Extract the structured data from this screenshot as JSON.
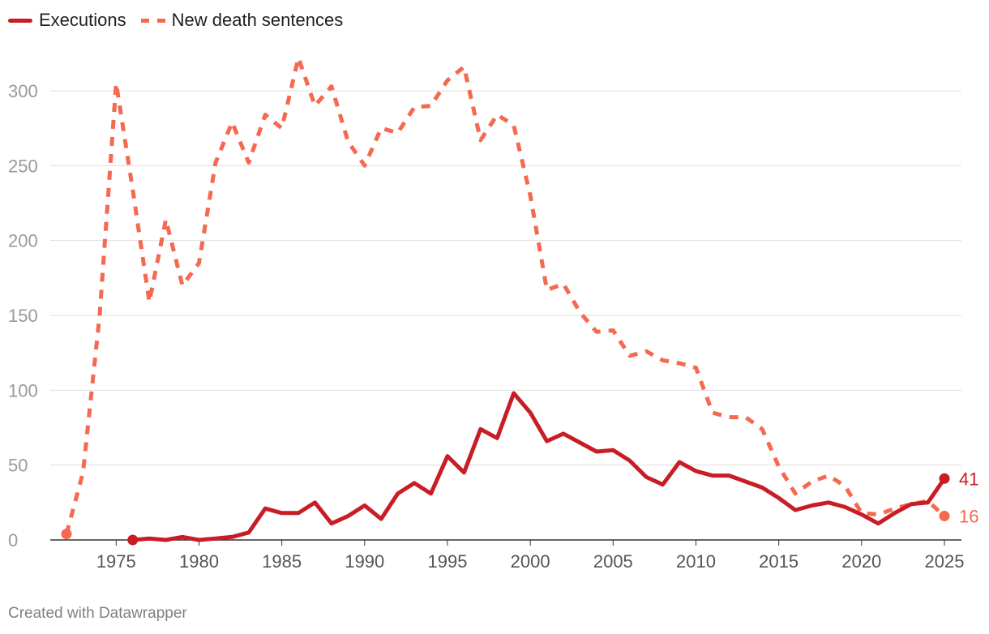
{
  "legend": {
    "executions_label": "Executions",
    "sentences_label": "New death sentences"
  },
  "credit": "Created with Datawrapper",
  "colors": {
    "executions": "#c81d25",
    "sentences": "#f4694f",
    "grid": "#e0e0e0",
    "axis": "#333333"
  },
  "chart_data": {
    "type": "line",
    "title": "",
    "xlabel": "",
    "ylabel": "",
    "xlim": [
      1971,
      2026
    ],
    "ylim": [
      0,
      325
    ],
    "y_ticks": [
      0,
      50,
      100,
      150,
      200,
      250,
      300
    ],
    "x_ticks": [
      1975,
      1980,
      1985,
      1990,
      1995,
      2000,
      2005,
      2010,
      2015,
      2020,
      2025
    ],
    "grid": true,
    "legend_position": "top-left",
    "series": [
      {
        "name": "Executions",
        "style": "solid",
        "end_label": "41",
        "x": [
          1976,
          1977,
          1978,
          1979,
          1980,
          1981,
          1982,
          1983,
          1984,
          1985,
          1986,
          1987,
          1988,
          1989,
          1990,
          1991,
          1992,
          1993,
          1994,
          1995,
          1996,
          1997,
          1998,
          1999,
          2000,
          2001,
          2002,
          2003,
          2004,
          2005,
          2006,
          2007,
          2008,
          2009,
          2010,
          2011,
          2012,
          2013,
          2014,
          2015,
          2016,
          2017,
          2018,
          2019,
          2020,
          2021,
          2022,
          2023,
          2024,
          2025
        ],
        "values": [
          0,
          1,
          0,
          2,
          0,
          1,
          2,
          5,
          21,
          18,
          18,
          25,
          11,
          16,
          23,
          14,
          31,
          38,
          31,
          56,
          45,
          74,
          68,
          98,
          85,
          66,
          71,
          65,
          59,
          60,
          53,
          42,
          37,
          52,
          46,
          43,
          43,
          39,
          35,
          28,
          20,
          23,
          25,
          22,
          17,
          11,
          18,
          24,
          25,
          41
        ]
      },
      {
        "name": "New death sentences",
        "style": "dashed",
        "end_label": "16",
        "x": [
          1972,
          1973,
          1974,
          1975,
          1976,
          1977,
          1978,
          1979,
          1980,
          1981,
          1982,
          1983,
          1984,
          1985,
          1986,
          1987,
          1988,
          1989,
          1990,
          1991,
          1992,
          1993,
          1994,
          1995,
          1996,
          1997,
          1998,
          1999,
          2000,
          2001,
          2002,
          2003,
          2004,
          2005,
          2006,
          2007,
          2008,
          2009,
          2010,
          2011,
          2012,
          2013,
          2014,
          2015,
          2016,
          2017,
          2018,
          2019,
          2020,
          2021,
          2022,
          2023,
          2024,
          2025
        ],
        "values": [
          4,
          45,
          150,
          305,
          234,
          159,
          214,
          170,
          185,
          252,
          279,
          252,
          284,
          275,
          322,
          290,
          303,
          266,
          250,
          275,
          272,
          289,
          290,
          307,
          316,
          267,
          284,
          277,
          230,
          167,
          171,
          152,
          139,
          140,
          123,
          126,
          120,
          118,
          115,
          85,
          82,
          82,
          74,
          49,
          31,
          39,
          43,
          36,
          18,
          17,
          21,
          24,
          26,
          16
        ]
      }
    ]
  }
}
